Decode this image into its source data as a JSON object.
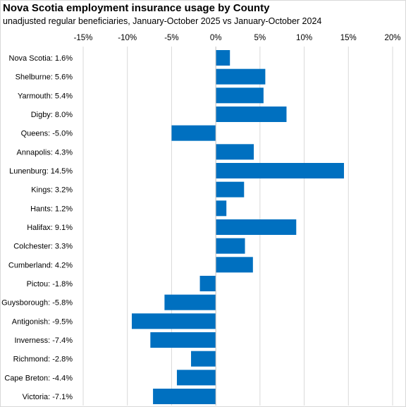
{
  "title": "Nova Scotia employment insurance usage by County",
  "subtitle": "unadjusted regular beneficiaries,  January-October 2025 vs January-October 2024",
  "chart_data": {
    "type": "bar",
    "orientation": "horizontal",
    "title": "Nova Scotia employment insurance usage by County",
    "subtitle": "unadjusted regular beneficiaries,  January-October 2025 vs January-October 2024",
    "categories": [
      "Nova Scotia:  1.6%",
      "Shelburne:  5.6%",
      "Yarmouth:  5.4%",
      "Digby:  8.0%",
      "Queens:  -5.0%",
      "Annapolis:  4.3%",
      "Lunenburg:  14.5%",
      "Kings:  3.2%",
      "Hants:  1.2%",
      "Halifax:  9.1%",
      "Colchester:  3.3%",
      "Cumberland:  4.2%",
      "Pictou:  -1.8%",
      "Guysborough:  -5.8%",
      "Antigonish:  -9.5%",
      "Inverness:  -7.4%",
      "Richmond:  -2.8%",
      "Cape Breton:  -4.4%",
      "Victoria:  -7.1%"
    ],
    "values": [
      1.6,
      5.6,
      5.4,
      8.0,
      -5.0,
      4.3,
      14.5,
      3.2,
      1.2,
      9.1,
      3.3,
      4.2,
      -1.8,
      -5.8,
      -9.5,
      -7.4,
      -2.8,
      -4.4,
      -7.1
    ],
    "xlim": [
      -15,
      20
    ],
    "xticks": [
      "-15%",
      "-10%",
      "-5%",
      "0%",
      "5%",
      "10%",
      "15%",
      "20%"
    ],
    "xtick_values": [
      -15,
      -10,
      -5,
      0,
      5,
      10,
      15,
      20
    ],
    "x_axis_position": "top",
    "grid": true,
    "legend": "none",
    "bar_color": "#0070c0",
    "grid_color": "#d9d9d9"
  }
}
